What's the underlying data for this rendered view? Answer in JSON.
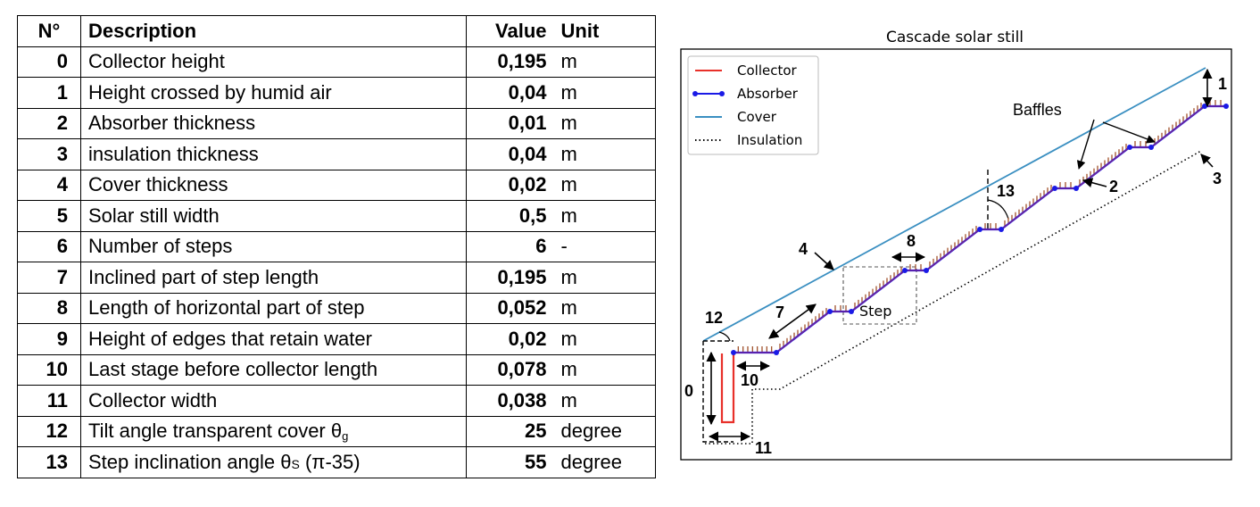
{
  "table": {
    "headers": {
      "no": "N°",
      "description": "Description",
      "value": "Value",
      "unit": "Unit"
    },
    "rows": [
      {
        "no": "0",
        "description": "Collector height",
        "value": "0,195",
        "unit": "m"
      },
      {
        "no": "1",
        "description": "Height crossed by humid air",
        "value": "0,04",
        "unit": "m"
      },
      {
        "no": "2",
        "description": "Absorber thickness",
        "value": "0,01",
        "unit": "m"
      },
      {
        "no": "3",
        "description": "insulation thickness",
        "value": "0,04",
        "unit": "m"
      },
      {
        "no": "4",
        "description": "Cover thickness",
        "value": "0,02",
        "unit": "m"
      },
      {
        "no": "5",
        "description": "Solar still width",
        "value": "0,5",
        "unit": "m"
      },
      {
        "no": "6",
        "description": "Number of steps",
        "value": "6",
        "unit": "-"
      },
      {
        "no": "7",
        "description": "Inclined part of step length",
        "value": "0,195",
        "unit": "m"
      },
      {
        "no": "8",
        "description": "Length of horizontal part of step",
        "value": "0,052",
        "unit": "m"
      },
      {
        "no": "9",
        "description": "Height of edges that retain water",
        "value": "0,02",
        "unit": "m"
      },
      {
        "no": "10",
        "description": "Last stage before collector length",
        "value": "0,078",
        "unit": "m"
      },
      {
        "no": "11",
        "description": "Collector width",
        "value": "0,038",
        "unit": "m"
      },
      {
        "no": "12",
        "description": "Tilt angle transparent cover θ",
        "description_sub": "g",
        "value": "25",
        "unit": "degree"
      },
      {
        "no": "13",
        "description": "Step inclination angle θ",
        "description_sub": "S",
        "description_tail": " (π-35)",
        "value": "55",
        "unit": "degree"
      }
    ]
  },
  "diagram": {
    "title": "Cascade solar still",
    "legend": [
      {
        "label": "Collector",
        "color": "#e8302a",
        "style": "solid"
      },
      {
        "label": "Absorber",
        "color": "#1a1ae6",
        "style": "solid-dots"
      },
      {
        "label": "Cover",
        "color": "#3a8fc1",
        "style": "solid"
      },
      {
        "label": "Insulation",
        "color": "#000000",
        "style": "dotted"
      }
    ],
    "labels": {
      "n0": "0",
      "n1": "1",
      "n2": "2",
      "n3": "3",
      "n4": "4",
      "n7": "7",
      "n8": "8",
      "n10": "10",
      "n11": "11",
      "n12": "12",
      "n13": "13",
      "baffles": "Baffles",
      "step": "Step"
    },
    "colors": {
      "collector": "#e8302a",
      "absorber": "#1a1ae6",
      "cover": "#3a8fc1",
      "baffle": "#a0522d"
    }
  }
}
